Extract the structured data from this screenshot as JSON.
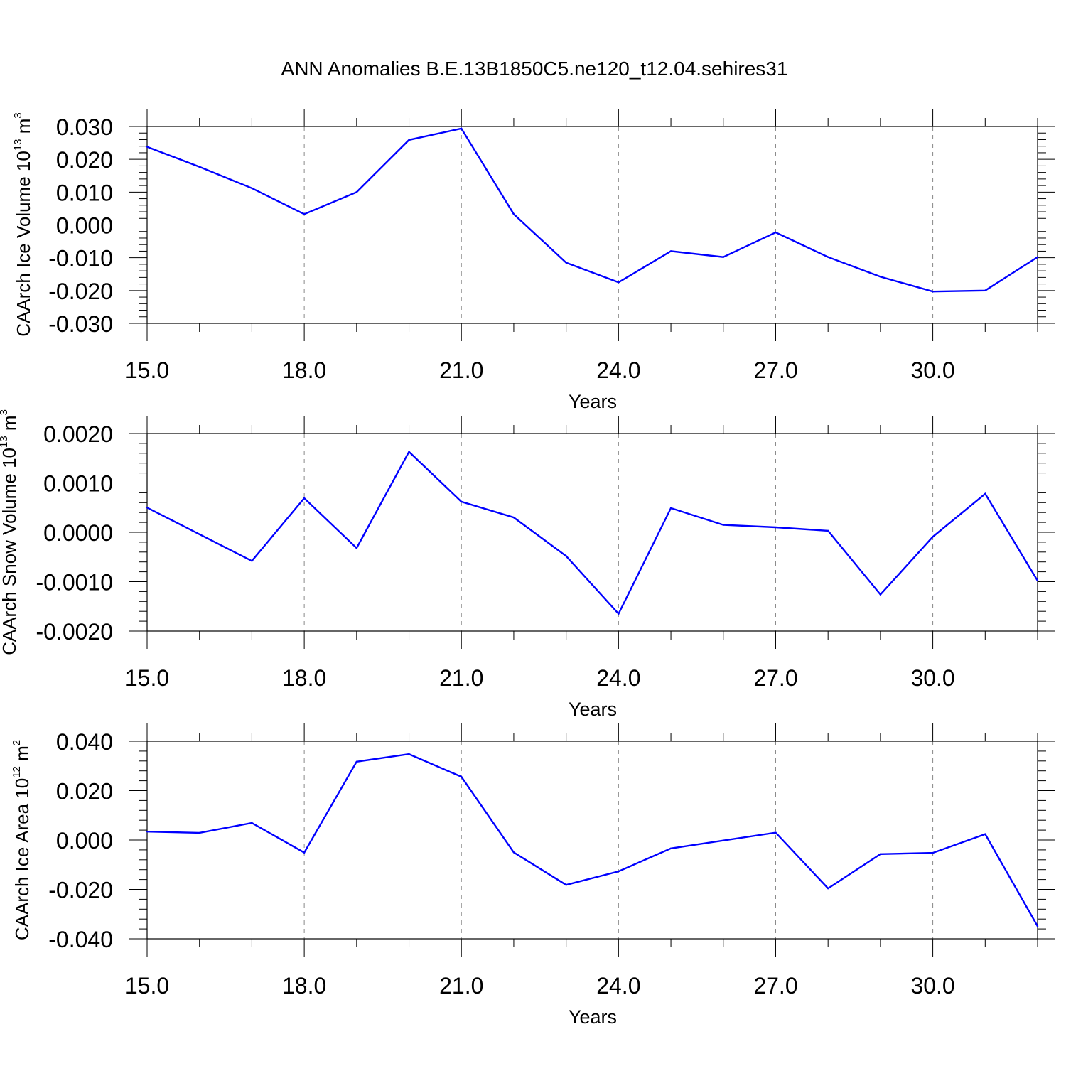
{
  "title": "ANN Anomalies B.E.13B1850C5.ne120_t12.04.sehires31",
  "line_color": "#0000ff",
  "chart_data": [
    {
      "type": "line",
      "ylabel": {
        "base": "CAArch Ice Volume 10",
        "exp": "13",
        "unit": " m",
        "unit_exp": "3"
      },
      "xlabel": "Years",
      "xlim": [
        15,
        32
      ],
      "ylim": [
        -0.03,
        0.03
      ],
      "x_ticks": [
        "15.0",
        "18.0",
        "21.0",
        "24.0",
        "27.0",
        "30.0"
      ],
      "y_ticks": [
        "0.030",
        "0.020",
        "0.010",
        "0.000",
        "-0.010",
        "-0.020",
        "-0.030"
      ],
      "y_tick_values": [
        0.03,
        0.02,
        0.01,
        0.0,
        -0.01,
        -0.02,
        -0.03
      ],
      "x": [
        15,
        16,
        17,
        18,
        19,
        20,
        21,
        22,
        23,
        24,
        25,
        26,
        27,
        28,
        29,
        30,
        31,
        32
      ],
      "values": [
        0.0238,
        0.0177,
        0.0112,
        0.0033,
        0.01,
        0.0259,
        0.0294,
        0.0033,
        -0.0115,
        -0.0175,
        -0.008,
        -0.0098,
        -0.0023,
        -0.0098,
        -0.0158,
        -0.0203,
        -0.02,
        -0.0098
      ]
    },
    {
      "type": "line",
      "ylabel": {
        "base": "CAArch Snow Volume 10",
        "exp": "13",
        "unit": " m",
        "unit_exp": "3"
      },
      "xlabel": "Years",
      "xlim": [
        15,
        32
      ],
      "ylim": [
        -0.002,
        0.002
      ],
      "x_ticks": [
        "15.0",
        "18.0",
        "21.0",
        "24.0",
        "27.0",
        "30.0"
      ],
      "y_ticks": [
        "0.0020",
        "0.0010",
        "0.0000",
        "-0.0010",
        "-0.0020"
      ],
      "y_tick_values": [
        0.002,
        0.001,
        0.0,
        -0.001,
        -0.002
      ],
      "x": [
        15,
        16,
        17,
        18,
        19,
        20,
        21,
        22,
        23,
        24,
        25,
        26,
        27,
        28,
        29,
        30,
        31,
        32
      ],
      "values": [
        0.0005,
        -4e-05,
        -0.00058,
        0.00069,
        -0.00032,
        0.00163,
        0.00062,
        0.0003,
        -0.00048,
        -0.00165,
        0.00049,
        0.00015,
        0.0001,
        3e-05,
        -0.00126,
        -9e-05,
        0.00078,
        -0.00098
      ]
    },
    {
      "type": "line",
      "ylabel": {
        "base": "CAArch Ice Area 10",
        "exp": "12",
        "unit": " m",
        "unit_exp": "2"
      },
      "xlabel": "Years",
      "xlim": [
        15,
        32
      ],
      "ylim": [
        -0.04,
        0.04
      ],
      "x_ticks": [
        "15.0",
        "18.0",
        "21.0",
        "24.0",
        "27.0",
        "30.0"
      ],
      "y_ticks": [
        "0.040",
        "0.020",
        "0.000",
        "-0.020",
        "-0.040"
      ],
      "y_tick_values": [
        0.04,
        0.02,
        0.0,
        -0.02,
        -0.04
      ],
      "x": [
        15,
        16,
        17,
        18,
        19,
        20,
        21,
        22,
        23,
        24,
        25,
        26,
        27,
        28,
        29,
        30,
        31,
        32
      ],
      "values": [
        0.0034,
        0.0029,
        0.0069,
        -0.0051,
        0.0317,
        0.0348,
        0.0256,
        -0.005,
        -0.0182,
        -0.0127,
        -0.0034,
        -0.0002,
        0.003,
        -0.0196,
        -0.0057,
        -0.0052,
        0.0024,
        -0.0349
      ]
    }
  ]
}
